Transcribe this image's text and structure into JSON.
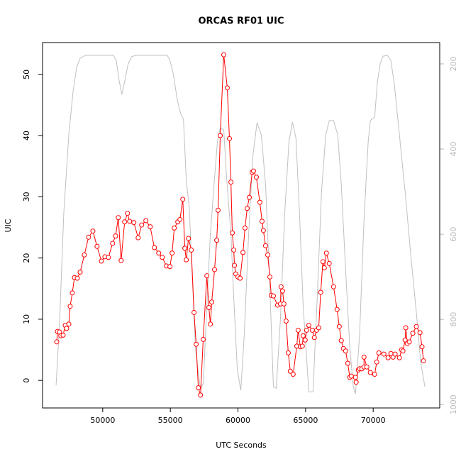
{
  "chart_data": {
    "type": "line",
    "title": "ORCAS RF01 UIC",
    "x_label": "UTC Seconds",
    "y_label": "UIC",
    "xlim": [
      45550,
      74920
    ],
    "xticks": [
      50000,
      55000,
      60000,
      65000,
      70000
    ],
    "ylim": [
      -4.5,
      55.2
    ],
    "yticks": [
      0,
      10,
      20,
      30,
      40,
      50
    ],
    "y2lim": [
      1008,
      150
    ],
    "y2ticks": [
      200,
      400,
      600,
      800,
      1000
    ],
    "series": [
      {
        "color": "#ff0000",
        "markers": true,
        "axis": "y",
        "x": [
          46600,
          46650,
          46800,
          46900,
          47070,
          47230,
          47330,
          47490,
          47590,
          47750,
          47910,
          48120,
          48330,
          48640,
          48950,
          49270,
          49580,
          49900,
          50160,
          50420,
          50730,
          50950,
          51150,
          51360,
          51620,
          51830,
          51990,
          52300,
          52620,
          52880,
          53190,
          53510,
          53820,
          54140,
          54400,
          54710,
          54970,
          55130,
          55290,
          55550,
          55710,
          55920,
          56070,
          56180,
          56340,
          56550,
          56750,
          56910,
          57070,
          57230,
          57430,
          57700,
          57850,
          57960,
          58060,
          58270,
          58430,
          58530,
          58690,
          58950,
          59210,
          59370,
          59480,
          59580,
          59690,
          59740,
          59840,
          60000,
          60160,
          60370,
          60520,
          60680,
          60840,
          61050,
          61150,
          61360,
          61620,
          61780,
          61880,
          62040,
          62200,
          62360,
          62460,
          62620,
          62930,
          63140,
          63190,
          63300,
          63400,
          63560,
          63720,
          63870,
          64080,
          64350,
          64450,
          64610,
          64760,
          64820,
          64970,
          65080,
          65240,
          65500,
          65650,
          65810,
          65970,
          66120,
          66280,
          66390,
          66540,
          66750,
          67070,
          67330,
          67490,
          67640,
          67800,
          67960,
          68120,
          68270,
          68380,
          68690,
          68740,
          68900,
          69000,
          69160,
          69320,
          69320,
          69530,
          69790,
          70110,
          70260,
          70420,
          70790,
          71100,
          71310,
          71470,
          71620,
          71940,
          72100,
          72200,
          72360,
          72410,
          72520,
          72670,
          72930,
          73190,
          73460,
          73610,
          73720
        ],
        "values": [
          6.3,
          8.0,
          7.9,
          7.3,
          7.4,
          9.0,
          8.5,
          9.2,
          12.1,
          14.3,
          16.8,
          16.7,
          17.7,
          20.5,
          23.4,
          24.4,
          21.9,
          19.5,
          20.2,
          20.1,
          22.4,
          23.6,
          26.6,
          19.6,
          25.9,
          27.3,
          26.0,
          25.8,
          23.3,
          25.4,
          26.1,
          25.1,
          21.7,
          20.8,
          20.1,
          18.7,
          18.6,
          20.8,
          24.9,
          25.9,
          26.3,
          29.6,
          21.6,
          19.7,
          23.2,
          21.3,
          11.1,
          5.9,
          -1.2,
          -2.4,
          6.7,
          17.1,
          11.9,
          9.2,
          12.8,
          18.1,
          22.9,
          27.8,
          40.0,
          53.2,
          47.8,
          39.5,
          32.4,
          24.1,
          21.3,
          18.8,
          17.4,
          16.9,
          16.7,
          20.9,
          24.9,
          28.1,
          29.9,
          34.0,
          34.2,
          33.2,
          29.1,
          26.0,
          24.5,
          22.0,
          20.5,
          16.9,
          13.9,
          13.8,
          12.3,
          12.5,
          15.3,
          14.6,
          12.5,
          9.7,
          4.5,
          1.5,
          1.0,
          5.6,
          8.2,
          5.5,
          5.6,
          7.3,
          6.6,
          8.2,
          9.0,
          8.2,
          7.0,
          8.2,
          8.6,
          14.4,
          19.4,
          18.4,
          20.8,
          19.1,
          15.3,
          11.6,
          8.8,
          6.5,
          5.2,
          4.8,
          2.8,
          0.5,
          0.7,
          0.5,
          -0.3,
          1.7,
          1.9,
          1.9,
          2.2,
          3.8,
          2.2,
          1.3,
          1.0,
          3.0,
          4.5,
          4.3,
          3.7,
          4.4,
          3.8,
          4.3,
          3.7,
          5.0,
          4.8,
          6.6,
          8.6,
          6.0,
          6.3,
          7.7,
          8.8,
          7.8,
          5.5,
          3.2
        ]
      },
      {
        "color": "#c0c0c0",
        "markers": false,
        "axis": "y2",
        "x": [
          46550,
          46810,
          47120,
          47490,
          47800,
          48070,
          48330,
          48700,
          50790,
          51000,
          51200,
          51410,
          51620,
          51880,
          52150,
          52460,
          54770,
          54970,
          55230,
          55500,
          55760,
          55970,
          56180,
          56390,
          56600,
          56860,
          57070,
          57230,
          57440,
          57650,
          57960,
          58270,
          58480,
          58690,
          58950,
          59160,
          59480,
          59690,
          59950,
          60210,
          60470,
          60790,
          61100,
          61410,
          61730,
          62040,
          62310,
          62620,
          62830,
          63140,
          63460,
          63770,
          64030,
          64290,
          64550,
          64820,
          65240,
          65550,
          65860,
          66180,
          66490,
          66750,
          67070,
          67380,
          67640,
          67960,
          68270,
          68530,
          68690,
          69000,
          69320,
          69630,
          69790,
          70110,
          70310,
          70520,
          70730,
          71050,
          71310,
          71570,
          71990,
          72410,
          72780,
          73190,
          73510,
          73820
        ],
        "values": [
          955,
          808,
          550,
          367,
          267,
          208,
          187,
          180,
          180,
          192,
          237,
          272,
          242,
          200,
          183,
          180,
          180,
          192,
          225,
          283,
          317,
          330,
          475,
          533,
          683,
          867,
          925,
          963,
          950,
          800,
          600,
          467,
          383,
          350,
          355,
          467,
          600,
          750,
          917,
          967,
          833,
          600,
          417,
          338,
          367,
          483,
          683,
          958,
          962,
          800,
          550,
          383,
          337,
          375,
          550,
          767,
          970,
          970,
          750,
          500,
          367,
          333,
          333,
          367,
          483,
          683,
          867,
          958,
          975,
          833,
          567,
          383,
          333,
          325,
          242,
          200,
          182,
          180,
          192,
          250,
          383,
          517,
          650,
          783,
          900,
          958
        ]
      }
    ]
  }
}
